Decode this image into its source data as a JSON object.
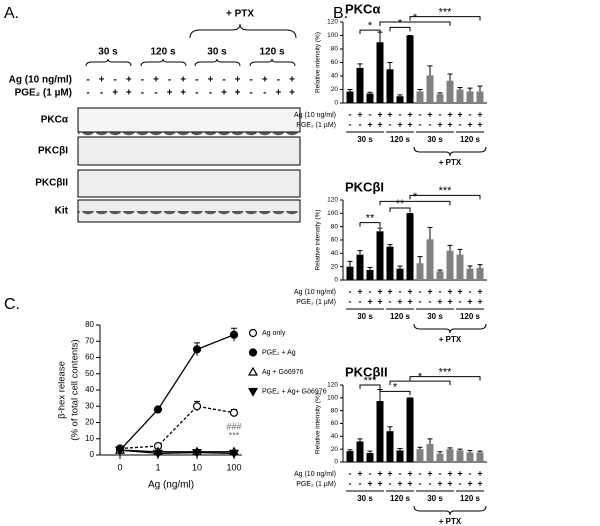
{
  "panel_labels": [
    "A.",
    "B.",
    "C."
  ],
  "blot": {
    "ptx_label": "+ PTX",
    "group_labels": [
      "30 s",
      "120 s",
      "30 s",
      "120 s"
    ],
    "row_labels": {
      "ag": "Ag (10 ng/ml)",
      "pge2": "PGE₂ (1 µM)"
    },
    "ag_signs": [
      "-",
      "+",
      "-",
      "+",
      "-",
      "+",
      "-",
      "+",
      "-",
      "+",
      "-",
      "+",
      "-",
      "+",
      "-",
      "+"
    ],
    "pge2_signs": [
      "-",
      "-",
      "+",
      "+",
      "-",
      "-",
      "+",
      "+",
      "-",
      "-",
      "+",
      "+",
      "-",
      "-",
      "+",
      "+"
    ],
    "proteins": [
      "PKCα",
      "PKCβI",
      "PKCβII",
      "Kit"
    ]
  },
  "chart_data": [
    {
      "type": "bar",
      "title": "PKCα",
      "y_label": "Relative intensity (%)",
      "ylim": [
        0,
        120
      ],
      "yticks": [
        0,
        20,
        40,
        60,
        80,
        100,
        120
      ],
      "values": [
        17,
        52,
        14,
        90,
        50,
        10,
        100,
        17,
        41,
        13,
        33,
        20,
        17,
        17
      ],
      "errors": [
        3,
        6,
        2,
        15,
        10,
        2,
        0,
        3,
        14,
        2,
        10,
        3,
        5,
        8
      ],
      "colors": [
        "#000000",
        "#000000",
        "#000000",
        "#000000",
        "#000000",
        "#000000",
        "#000000",
        "#808080",
        "#808080",
        "#808080",
        "#808080",
        "#808080",
        "#808080",
        "#808080"
      ],
      "row_labels": {
        "ag": "Ag (10 ng/ml)",
        "pge2": "PGE₂ (1 µM)"
      },
      "ag_signs": [
        "-",
        "+",
        "-",
        "+",
        "+",
        "-",
        "+",
        "-",
        "+",
        "-",
        "+",
        "+",
        "-",
        "+"
      ],
      "pge2_signs": [
        "-",
        "-",
        "+",
        "+",
        "-",
        "+",
        "+",
        "-",
        "-",
        "+",
        "+",
        "-",
        "+",
        "+"
      ],
      "group_labels": [
        "30 s",
        "120 s",
        "30 s",
        "120 s"
      ],
      "ptx_label": "+ PTX",
      "annotations": [
        "*",
        "*",
        "*",
        "***"
      ]
    },
    {
      "type": "bar",
      "title": "PKCβI",
      "y_label": "Relative intensity (%)",
      "ylim": [
        0,
        120
      ],
      "yticks": [
        0,
        20,
        40,
        60,
        80,
        100,
        120
      ],
      "values": [
        20,
        38,
        15,
        73,
        50,
        17,
        100,
        25,
        61,
        13,
        44,
        38,
        17,
        18
      ],
      "errors": [
        8,
        6,
        4,
        5,
        3,
        4,
        0,
        10,
        18,
        2,
        8,
        8,
        4,
        5
      ],
      "colors": [
        "#000000",
        "#000000",
        "#000000",
        "#000000",
        "#000000",
        "#000000",
        "#000000",
        "#808080",
        "#808080",
        "#808080",
        "#808080",
        "#808080",
        "#808080",
        "#808080"
      ],
      "row_labels": {
        "ag": "Ag (10 ng/ml)",
        "pge2": "PGE₂ (1 µM)"
      },
      "ag_signs": [
        "-",
        "+",
        "-",
        "+",
        "+",
        "-",
        "+",
        "-",
        "+",
        "-",
        "+",
        "+",
        "-",
        "+"
      ],
      "pge2_signs": [
        "-",
        "-",
        "+",
        "+",
        "-",
        "+",
        "+",
        "-",
        "-",
        "+",
        "+",
        "-",
        "+",
        "+"
      ],
      "group_labels": [
        "30 s",
        "120 s",
        "30 s",
        "120 s"
      ],
      "ptx_label": "+ PTX",
      "annotations": [
        "**",
        "**",
        "*",
        "***"
      ]
    },
    {
      "type": "bar",
      "title": "PKCβII",
      "y_label": "Relative intensity (%)",
      "ylim": [
        0,
        120
      ],
      "yticks": [
        0,
        20,
        40,
        60,
        80,
        100,
        120
      ],
      "values": [
        17,
        32,
        14,
        95,
        48,
        18,
        100,
        20,
        28,
        13,
        20,
        18,
        15,
        15
      ],
      "errors": [
        2,
        4,
        3,
        18,
        7,
        3,
        0,
        3,
        8,
        3,
        2,
        2,
        3,
        2
      ],
      "colors": [
        "#000000",
        "#000000",
        "#000000",
        "#000000",
        "#000000",
        "#000000",
        "#000000",
        "#808080",
        "#808080",
        "#808080",
        "#808080",
        "#808080",
        "#808080",
        "#808080"
      ],
      "row_labels": {
        "ag": "Ag (10 ng/ml)",
        "pge2": "PGE₂ (1 µM)"
      },
      "ag_signs": [
        "-",
        "+",
        "-",
        "+",
        "+",
        "-",
        "+",
        "-",
        "+",
        "-",
        "+",
        "+",
        "-",
        "+"
      ],
      "pge2_signs": [
        "-",
        "-",
        "+",
        "+",
        "-",
        "+",
        "+",
        "-",
        "-",
        "+",
        "+",
        "-",
        "+",
        "+"
      ],
      "group_labels": [
        "30 s",
        "120 s",
        "30 s",
        "120 s"
      ],
      "ptx_label": "+ PTX",
      "annotations": [
        "***",
        "*",
        "*",
        "***"
      ]
    },
    {
      "type": "line",
      "x_label": "Ag (ng/ml)",
      "y_label": [
        "β-hex release",
        "(% of total cell contents)"
      ],
      "categories": [
        "0",
        "1",
        "10",
        "100"
      ],
      "ylim": [
        0,
        80
      ],
      "yticks": [
        0,
        10,
        20,
        30,
        40,
        50,
        60,
        70,
        80
      ],
      "legend": "right",
      "series": [
        {
          "name": "Ag only",
          "color": "#000000",
          "marker": "open-circle",
          "dash": true,
          "values": [
            4,
            5.5,
            30,
            26
          ],
          "errors": [
            1,
            0.5,
            3,
            2
          ]
        },
        {
          "name": "PGE₂ + Ag",
          "color": "#000000",
          "marker": "filled-circle",
          "dash": false,
          "values": [
            3,
            28,
            65,
            74
          ],
          "errors": [
            1,
            1.5,
            4,
            4
          ]
        },
        {
          "name": "Ag + Gö6976",
          "color": "#000000",
          "marker": "open-triangle",
          "dash": false,
          "values": [
            3,
            2,
            2,
            2
          ]
        },
        {
          "name": "PGE₂ + Ag+ Gö6976",
          "color": "#000000",
          "marker": "filled-triangle-down",
          "dash": false,
          "values": [
            3,
            1,
            1.5,
            1
          ]
        }
      ],
      "annotations": [
        "###",
        "***"
      ]
    }
  ]
}
